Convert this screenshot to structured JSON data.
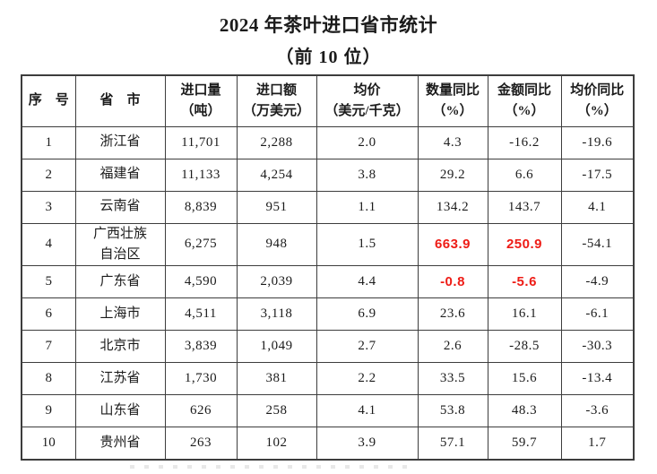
{
  "page": {
    "title": "2024 年茶叶进口省市统计",
    "subtitle": "（前 10 位）"
  },
  "colors": {
    "text": "#1b1b1b",
    "highlight_red": "#ee1c16",
    "border": "#3d3d3d",
    "background": "#ffffff"
  },
  "table": {
    "headers": [
      {
        "line1": "序　号",
        "line2": ""
      },
      {
        "line1": "省　市",
        "line2": ""
      },
      {
        "line1": "进口量",
        "line2": "（吨）"
      },
      {
        "line1": "进口额",
        "line2": "（万美元）"
      },
      {
        "line1": "均价",
        "line2": "（美元/千克）"
      },
      {
        "line1": "数量同比",
        "line2": "（%）"
      },
      {
        "line1": "金额同比",
        "line2": "（%）"
      },
      {
        "line1": "均价同比",
        "line2": "（%）"
      }
    ],
    "rows": [
      {
        "cells": [
          "1",
          "浙江省",
          "11,701",
          "2,288",
          "2.0",
          "4.3",
          "-16.2",
          "-19.6"
        ],
        "red": []
      },
      {
        "cells": [
          "2",
          "福建省",
          "11,133",
          "4,254",
          "3.8",
          "29.2",
          "6.6",
          "-17.5"
        ],
        "red": []
      },
      {
        "cells": [
          "3",
          "云南省",
          "8,839",
          "951",
          "1.1",
          "134.2",
          "143.7",
          "4.1"
        ],
        "red": []
      },
      {
        "cells": [
          "4",
          "广西壮族\n自治区",
          "6,275",
          "948",
          "1.5",
          "663.9",
          "250.9",
          "-54.1"
        ],
        "red": [
          5,
          6
        ]
      },
      {
        "cells": [
          "5",
          "广东省",
          "4,590",
          "2,039",
          "4.4",
          "-0.8",
          "-5.6",
          "-4.9"
        ],
        "red": [
          5,
          6
        ]
      },
      {
        "cells": [
          "6",
          "上海市",
          "4,511",
          "3,118",
          "6.9",
          "23.6",
          "16.1",
          "-6.1"
        ],
        "red": []
      },
      {
        "cells": [
          "7",
          "北京市",
          "3,839",
          "1,049",
          "2.7",
          "2.6",
          "-28.5",
          "-30.3"
        ],
        "red": []
      },
      {
        "cells": [
          "8",
          "江苏省",
          "1,730",
          "381",
          "2.2",
          "33.5",
          "15.6",
          "-13.4"
        ],
        "red": []
      },
      {
        "cells": [
          "9",
          "山东省",
          "626",
          "258",
          "4.1",
          "53.8",
          "48.3",
          "-3.6"
        ],
        "red": []
      },
      {
        "cells": [
          "10",
          "贵州省",
          "263",
          "102",
          "3.9",
          "57.1",
          "59.7",
          "1.7"
        ],
        "red": []
      }
    ]
  }
}
